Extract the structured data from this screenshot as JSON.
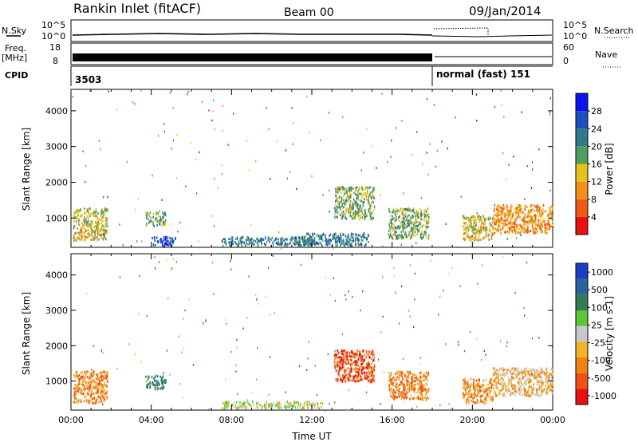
{
  "header": {
    "station": "Rankin Inlet (fitACF)",
    "beam": "Beam 00",
    "date": "09/Jan/2014"
  },
  "top_panels": {
    "nsky": {
      "label": "N.Sky",
      "left_ticks": [
        "10^5",
        "10^0"
      ],
      "right_ticks": [
        "10^5",
        "10^0"
      ],
      "right_label": "N.Search"
    },
    "freq": {
      "label_line1": "Freq.",
      "label_line2": "[MHz]",
      "left_ticks": [
        "18",
        "8"
      ],
      "right_ticks": [
        "60",
        "0"
      ],
      "right_label": "Nave"
    },
    "cpid": {
      "label": "CPID",
      "entries": [
        {
          "text": "3503",
          "start_hour": 0
        },
        {
          "text": "normal (fast) 151",
          "start_hour": 18
        }
      ]
    }
  },
  "chart_data": [
    {
      "type": "heatmap",
      "name": "power",
      "ylabel": "Slant Range [km]",
      "yticks": [
        1000,
        2000,
        3000,
        4000
      ],
      "ylim": [
        180,
        4600
      ],
      "xlim": [
        0,
        24
      ],
      "colorbar": {
        "label": "Power [dB]",
        "ticks": [
          "4",
          "8",
          "12",
          "16",
          "20",
          "24",
          "28"
        ],
        "colors": [
          "#0a14f0",
          "#1e4fbe",
          "#2f7a8c",
          "#4fa060",
          "#e8c21c",
          "#f2911a",
          "#ee5a12",
          "#e81010"
        ]
      },
      "patches": [
        {
          "t0": 0.1,
          "t1": 1.8,
          "r0": 400,
          "r1": 1300,
          "level": 4
        },
        {
          "t0": 3.7,
          "t1": 4.7,
          "r0": 800,
          "r1": 1200,
          "level": 3
        },
        {
          "t0": 4.0,
          "t1": 5.2,
          "r0": 250,
          "r1": 500,
          "level": 1
        },
        {
          "t0": 7.5,
          "t1": 12.0,
          "r0": 250,
          "r1": 500,
          "level": 2
        },
        {
          "t0": 11.5,
          "t1": 14.8,
          "r0": 250,
          "r1": 600,
          "level": 2
        },
        {
          "t0": 13.1,
          "t1": 15.1,
          "r0": 1000,
          "r1": 1900,
          "level": 3
        },
        {
          "t0": 15.8,
          "t1": 17.8,
          "r0": 450,
          "r1": 1300,
          "level": 3
        },
        {
          "t0": 19.5,
          "t1": 21.0,
          "r0": 400,
          "r1": 1100,
          "level": 4
        },
        {
          "t0": 21.0,
          "t1": 24.0,
          "r0": 600,
          "r1": 1400,
          "level": 5
        }
      ]
    },
    {
      "type": "heatmap",
      "name": "velocity",
      "ylabel": "Slant Range [km]",
      "yticks": [
        1000,
        2000,
        3000,
        4000
      ],
      "ylim": [
        180,
        4600
      ],
      "xlim": [
        0,
        24
      ],
      "xticks": [
        "00:00",
        "04:00",
        "08:00",
        "12:00",
        "16:00",
        "20:00",
        "00:00"
      ],
      "xlabel": "Time UT",
      "colorbar": {
        "label": "Velocity [m s-1]",
        "ticks": [
          "1000",
          "500",
          "100",
          "25",
          "-25",
          "-100",
          "-500",
          "-1000"
        ],
        "colors": [
          "#1e3cc8",
          "#2a64a0",
          "#357a55",
          "#5ac832",
          "#c8c8c8",
          "#f0b428",
          "#f08214",
          "#f05014",
          "#e81010"
        ]
      },
      "patches": [
        {
          "t0": 0.1,
          "t1": 1.8,
          "r0": 400,
          "r1": 1300,
          "level": 6
        },
        {
          "t0": 3.7,
          "t1": 4.7,
          "r0": 800,
          "r1": 1200,
          "level": 2
        },
        {
          "t0": 7.5,
          "t1": 12.5,
          "r0": 250,
          "r1": 450,
          "level": 4
        },
        {
          "t0": 13.1,
          "t1": 15.1,
          "r0": 1000,
          "r1": 1900,
          "level": 7
        },
        {
          "t0": 15.8,
          "t1": 17.8,
          "r0": 500,
          "r1": 1300,
          "level": 6
        },
        {
          "t0": 19.5,
          "t1": 21.0,
          "r0": 400,
          "r1": 1100,
          "level": 6
        },
        {
          "t0": 21.0,
          "t1": 24.0,
          "r0": 600,
          "r1": 1400,
          "level": 5
        }
      ]
    }
  ]
}
